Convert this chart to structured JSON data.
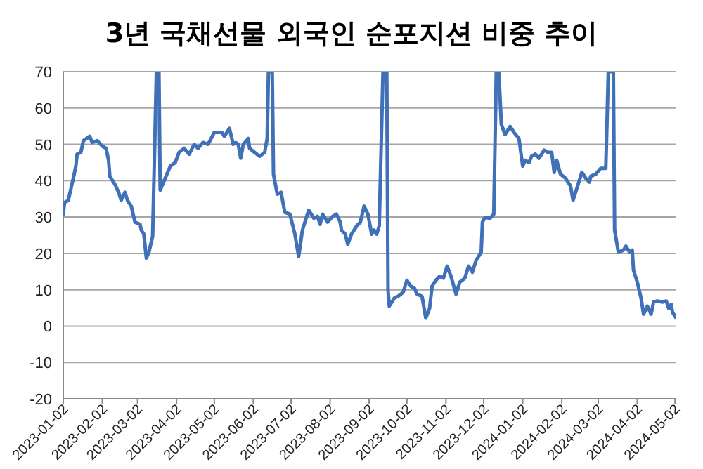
{
  "chart_data": {
    "type": "line",
    "title": "3년 국채선물 외국인 순포지션 비중 추이",
    "x": [
      "2023-01-02",
      "2023-01-03",
      "2023-01-06",
      "2023-01-10",
      "2023-01-12",
      "2023-01-13",
      "2023-01-16",
      "2023-01-18",
      "2023-01-23",
      "2023-01-25",
      "2023-01-29",
      "2023-02-02",
      "2023-02-05",
      "2023-02-07",
      "2023-02-08",
      "2023-02-12",
      "2023-02-15",
      "2023-02-17",
      "2023-02-20",
      "2023-02-22",
      "2023-02-25",
      "2023-02-28",
      "2023-03-04",
      "2023-03-05",
      "2023-03-07",
      "2023-03-09",
      "2023-03-11",
      "2023-03-14",
      "2023-03-17",
      "2023-03-19",
      "2023-03-20",
      "2023-03-24",
      "2023-03-28",
      "2023-04-01",
      "2023-04-04",
      "2023-04-08",
      "2023-04-12",
      "2023-04-16",
      "2023-04-19",
      "2023-04-23",
      "2023-04-27",
      "2023-05-02",
      "2023-05-08",
      "2023-05-10",
      "2023-05-14",
      "2023-05-17",
      "2023-05-19",
      "2023-05-21",
      "2023-05-23",
      "2023-05-25",
      "2023-05-29",
      "2023-05-30",
      "2023-06-03",
      "2023-06-07",
      "2023-06-11",
      "2023-06-13",
      "2023-06-14",
      "2023-06-17",
      "2023-06-18",
      "2023-06-21",
      "2023-06-24",
      "2023-06-27",
      "2023-07-01",
      "2023-07-05",
      "2023-07-08",
      "2023-07-11",
      "2023-07-13",
      "2023-07-16",
      "2023-07-20",
      "2023-07-23",
      "2023-07-25",
      "2023-07-27",
      "2023-07-31",
      "2023-08-04",
      "2023-08-07",
      "2023-08-10",
      "2023-08-11",
      "2023-08-14",
      "2023-08-16",
      "2023-08-19",
      "2023-08-23",
      "2023-08-26",
      "2023-08-29",
      "2023-09-01",
      "2023-09-04",
      "2023-09-06",
      "2023-09-08",
      "2023-09-10",
      "2023-09-13",
      "2023-09-16",
      "2023-09-17",
      "2023-09-18",
      "2023-09-22",
      "2023-09-25",
      "2023-09-29",
      "2023-10-02",
      "2023-10-05",
      "2023-10-08",
      "2023-10-10",
      "2023-10-14",
      "2023-10-17",
      "2023-10-20",
      "2023-10-22",
      "2023-10-25",
      "2023-10-28",
      "2023-10-31",
      "2023-11-03",
      "2023-11-06",
      "2023-11-10",
      "2023-11-13",
      "2023-11-15",
      "2023-11-17",
      "2023-11-20",
      "2023-11-23",
      "2023-11-26",
      "2023-11-30",
      "2023-12-01",
      "2023-12-03",
      "2023-12-07",
      "2023-12-10",
      "2023-12-12",
      "2023-12-14",
      "2023-12-16",
      "2023-12-19",
      "2023-12-23",
      "2023-12-26",
      "2023-12-30",
      "2024-01-02",
      "2024-01-04",
      "2024-01-07",
      "2024-01-09",
      "2024-01-12",
      "2024-01-15",
      "2024-01-19",
      "2024-01-22",
      "2024-01-25",
      "2024-01-27",
      "2024-01-29",
      "2024-02-01",
      "2024-02-05",
      "2024-02-09",
      "2024-02-11",
      "2024-02-14",
      "2024-02-18",
      "2024-02-21",
      "2024-02-24",
      "2024-02-25",
      "2024-02-29",
      "2024-03-04",
      "2024-03-08",
      "2024-03-10",
      "2024-03-14",
      "2024-03-15",
      "2024-03-18",
      "2024-03-22",
      "2024-03-24",
      "2024-03-27",
      "2024-03-29",
      "2024-03-30",
      "2024-04-02",
      "2024-04-05",
      "2024-04-07",
      "2024-04-10",
      "2024-04-13",
      "2024-04-15",
      "2024-04-18",
      "2024-04-22",
      "2024-04-25",
      "2024-04-27",
      "2024-04-29",
      "2024-04-30",
      "2024-05-03"
    ],
    "series": [
      {
        "color": "#3f70b8",
        "values": [
          30.8,
          34,
          34.6,
          40.7,
          44,
          47.3,
          47.8,
          51,
          52.2,
          50.5,
          51,
          49.5,
          48.9,
          45.6,
          41.2,
          39,
          36.8,
          34.6,
          36.8,
          34.6,
          33,
          28.6,
          28,
          26.4,
          25.3,
          18.7,
          20.3,
          24.7,
          70,
          70,
          37.4,
          40.7,
          44,
          45,
          47.8,
          48.9,
          47.3,
          50,
          48.9,
          50.5,
          50,
          53.3,
          53.3,
          52.2,
          54.4,
          50,
          50.5,
          50,
          46.2,
          50,
          51.6,
          48.9,
          47.8,
          46.7,
          47.8,
          51.6,
          70,
          70,
          41.8,
          36.3,
          36.8,
          31.3,
          30.8,
          25.3,
          19.2,
          26.4,
          28.6,
          31.9,
          29.7,
          30.2,
          28,
          30.8,
          28.6,
          30.2,
          30.8,
          28.6,
          26.4,
          25.3,
          22.5,
          25.3,
          27.5,
          28.6,
          33,
          30.8,
          25.3,
          26.4,
          25.3,
          27.5,
          70,
          70,
          9.9,
          5.5,
          7.7,
          8.2,
          9.3,
          12.6,
          11,
          10.4,
          8.8,
          8.2,
          2.2,
          4.9,
          11,
          12.6,
          13.7,
          13.2,
          16.5,
          13.7,
          8.8,
          12.1,
          12.6,
          13.2,
          16.5,
          14.8,
          18.1,
          20.3,
          28.6,
          29.9,
          29.7,
          30.8,
          70,
          70,
          55.5,
          52.7,
          54.9,
          53.3,
          51.6,
          44,
          45.6,
          45,
          46.7,
          47.3,
          46.2,
          48.4,
          47.8,
          47.8,
          42.3,
          45.6,
          41.8,
          40.7,
          38.5,
          34.6,
          37.9,
          42.3,
          40.7,
          39.6,
          41.2,
          41.8,
          43.4,
          43.4,
          70,
          70,
          26.4,
          20.3,
          20.9,
          22,
          20.3,
          20.9,
          15.4,
          12.1,
          7.7,
          3.3,
          5.5,
          3.3,
          6.6,
          6.9,
          6.6,
          6.9,
          4.9,
          6,
          3.8,
          2.2
        ]
      }
    ],
    "xlim": [
      "2023-01-02",
      "2024-05-03"
    ],
    "xticks": [
      "2023-01-02",
      "2023-02-02",
      "2023-03-02",
      "2023-04-02",
      "2023-05-02",
      "2023-06-02",
      "2023-07-02",
      "2023-08-02",
      "2023-09-02",
      "2023-10-02",
      "2023-11-02",
      "2023-12-02",
      "2024-01-02",
      "2024-02-02",
      "2024-03-02",
      "2024-04-02",
      "2024-05-02"
    ],
    "ylim": [
      -20,
      70
    ],
    "yticks": [
      -20,
      -10,
      0,
      10,
      20,
      30,
      40,
      50,
      60,
      70
    ],
    "grid": "y",
    "line_style": "solid"
  }
}
